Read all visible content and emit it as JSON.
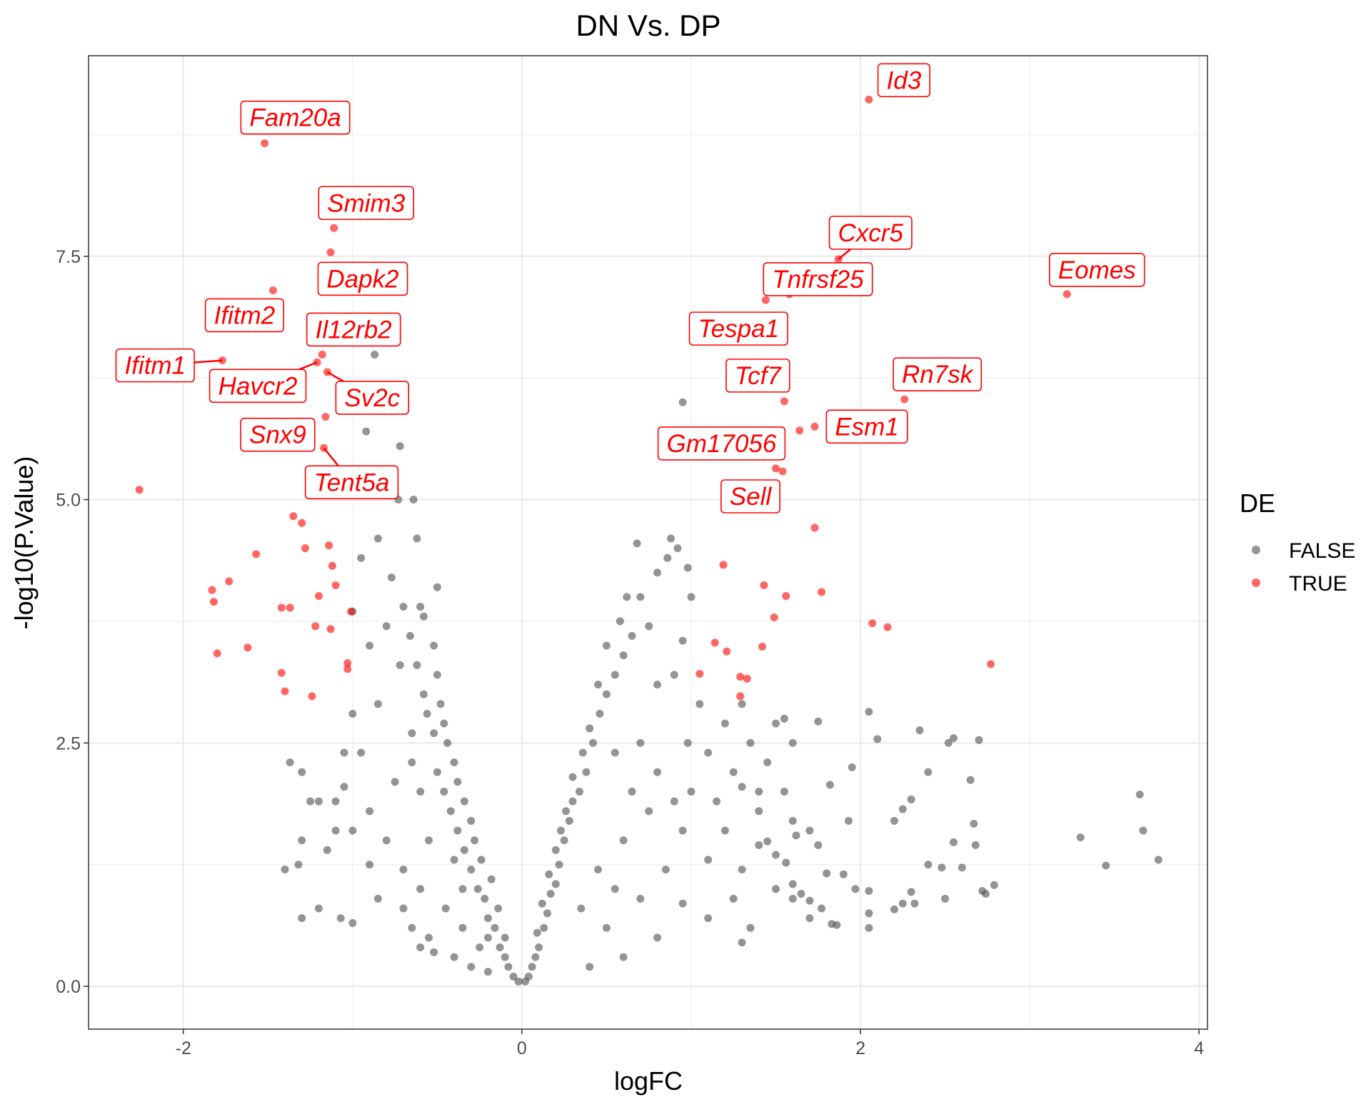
{
  "chart_data": {
    "type": "scatter",
    "title": "DN Vs. DP",
    "xlabel": "logFC",
    "ylabel": "-log10(P.Value)",
    "xlim": [
      -2.56,
      4.05
    ],
    "ylim": [
      -0.44,
      9.56
    ],
    "x_ticks": [
      "-2",
      "0",
      "2",
      "4"
    ],
    "y_ticks": [
      "0.0",
      "2.5",
      "5.0",
      "7.5"
    ],
    "grid": true,
    "legend": {
      "title": "DE",
      "position": "right",
      "entries": [
        "FALSE",
        "TRUE"
      ]
    },
    "colors": {
      "FALSE": "#4d4d4d",
      "TRUE": "#ff0000"
    },
    "labeled_points": [
      {
        "gene": "Id3",
        "x": 2.05,
        "y": 9.11
      },
      {
        "gene": "Fam20a",
        "x": -1.52,
        "y": 8.66
      },
      {
        "gene": "Smim3",
        "x": -1.11,
        "y": 7.79
      },
      {
        "gene": "Dapk2",
        "x": -1.13,
        "y": 7.54
      },
      {
        "gene": "Ifitm2",
        "x": -1.47,
        "y": 7.15
      },
      {
        "gene": "Il12rb2",
        "x": -1.18,
        "y": 6.49
      },
      {
        "gene": "Ifitm1",
        "x": -1.77,
        "y": 6.43
      },
      {
        "gene": "Havcr2",
        "x": -1.21,
        "y": 6.41
      },
      {
        "gene": "Sv2c",
        "x": -1.15,
        "y": 6.31
      },
      {
        "gene": "Snx9",
        "x": -1.16,
        "y": 5.85
      },
      {
        "gene": "Tent5a",
        "x": -1.17,
        "y": 5.53
      },
      {
        "gene": "Cxcr5",
        "x": 1.87,
        "y": 7.47
      },
      {
        "gene": "Tnfrsf25",
        "x": 1.58,
        "y": 7.11
      },
      {
        "gene": "Eomes",
        "x": 3.22,
        "y": 7.11
      },
      {
        "gene": "Tespa1",
        "x": 1.44,
        "y": 7.05
      },
      {
        "gene": "Tcf7",
        "x": 1.55,
        "y": 6.01
      },
      {
        "gene": "Rn7sk",
        "x": 2.26,
        "y": 6.03
      },
      {
        "gene": "Esm1",
        "x": 1.73,
        "y": 5.75
      },
      {
        "gene": "Gm17056",
        "x": 1.5,
        "y": 5.32
      },
      {
        "gene": "Sell",
        "x": 1.54,
        "y": 5.29
      }
    ],
    "de_true_points": [
      [
        1.64,
        5.71
      ],
      [
        -2.26,
        5.1
      ],
      [
        -1.35,
        4.83
      ],
      [
        -1.3,
        4.76
      ],
      [
        -1.57,
        4.44
      ],
      [
        -1.14,
        4.53
      ],
      [
        -1.28,
        4.5
      ],
      [
        -1.12,
        4.32
      ],
      [
        -1.73,
        4.16
      ],
      [
        -1.83,
        4.07
      ],
      [
        -1.1,
        4.12
      ],
      [
        -1.2,
        4.01
      ],
      [
        -1.42,
        3.89
      ],
      [
        -1.37,
        3.89
      ],
      [
        -1.82,
        3.95
      ],
      [
        -1.01,
        3.85
      ],
      [
        -1.22,
        3.7
      ],
      [
        -1.13,
        3.67
      ],
      [
        -1.62,
        3.48
      ],
      [
        -1.8,
        3.42
      ],
      [
        -1.03,
        3.32
      ],
      [
        -1.03,
        3.26
      ],
      [
        -1.42,
        3.22
      ],
      [
        -1.4,
        3.03
      ],
      [
        -1.24,
        2.98
      ],
      [
        1.73,
        4.71
      ],
      [
        1.19,
        4.33
      ],
      [
        1.43,
        4.12
      ],
      [
        1.56,
        4.01
      ],
      [
        1.77,
        4.05
      ],
      [
        1.49,
        3.79
      ],
      [
        2.07,
        3.73
      ],
      [
        2.16,
        3.69
      ],
      [
        1.14,
        3.53
      ],
      [
        1.21,
        3.44
      ],
      [
        1.42,
        3.49
      ],
      [
        1.05,
        3.21
      ],
      [
        1.29,
        3.18
      ],
      [
        1.33,
        3.16
      ],
      [
        1.29,
        2.98
      ],
      [
        2.77,
        3.31
      ]
    ],
    "de_false_points": [
      [
        -0.02,
        0.05
      ],
      [
        -0.05,
        0.1
      ],
      [
        -0.08,
        0.2
      ],
      [
        -0.1,
        0.3
      ],
      [
        -0.13,
        0.4
      ],
      [
        -0.1,
        0.5
      ],
      [
        -0.16,
        0.6
      ],
      [
        -0.2,
        0.7
      ],
      [
        -0.14,
        0.8
      ],
      [
        -0.22,
        0.9
      ],
      [
        -0.26,
        1.0
      ],
      [
        -0.18,
        1.1
      ],
      [
        -0.3,
        1.2
      ],
      [
        -0.24,
        1.3
      ],
      [
        -0.34,
        1.4
      ],
      [
        -0.28,
        1.5
      ],
      [
        -0.38,
        1.6
      ],
      [
        -0.3,
        1.7
      ],
      [
        -0.42,
        1.8
      ],
      [
        -0.34,
        1.9
      ],
      [
        -0.46,
        2.0
      ],
      [
        -0.38,
        2.1
      ],
      [
        -0.5,
        2.2
      ],
      [
        -0.4,
        2.3
      ],
      [
        -0.44,
        2.5
      ],
      [
        -0.52,
        2.6
      ],
      [
        -0.46,
        2.7
      ],
      [
        -0.56,
        2.8
      ],
      [
        -0.48,
        2.9
      ],
      [
        -0.58,
        3.0
      ],
      [
        -0.5,
        3.2
      ],
      [
        -0.62,
        3.3
      ],
      [
        -0.52,
        3.5
      ],
      [
        -0.66,
        3.6
      ],
      [
        -0.58,
        3.8
      ],
      [
        -0.7,
        3.9
      ],
      [
        -0.6,
        1.0
      ],
      [
        -0.7,
        1.2
      ],
      [
        -0.8,
        1.5
      ],
      [
        -0.9,
        1.8
      ],
      [
        -0.75,
        2.1
      ],
      [
        -0.95,
        2.4
      ],
      [
        -1.05,
        2.4
      ],
      [
        -0.65,
        2.6
      ],
      [
        -0.85,
        2.9
      ],
      [
        -1.0,
        2.8
      ],
      [
        -0.72,
        3.3
      ],
      [
        -0.9,
        3.5
      ],
      [
        -1.0,
        3.85
      ],
      [
        -0.8,
        3.7
      ],
      [
        -0.77,
        4.2
      ],
      [
        -0.62,
        4.6
      ],
      [
        -0.85,
        4.6
      ],
      [
        -0.95,
        4.4
      ],
      [
        -0.5,
        4.1
      ],
      [
        -0.6,
        3.9
      ],
      [
        -0.73,
        5.0
      ],
      [
        -0.64,
        5.0
      ],
      [
        -0.95,
        5.3
      ],
      [
        -0.92,
        5.7
      ],
      [
        -0.72,
        5.55
      ],
      [
        -0.87,
        6.49
      ],
      [
        -1.37,
        2.3
      ],
      [
        -1.3,
        2.2
      ],
      [
        -1.2,
        1.9
      ],
      [
        -1.25,
        1.9
      ],
      [
        -1.4,
        1.2
      ],
      [
        -1.32,
        1.25
      ],
      [
        -1.3,
        0.7
      ],
      [
        -1.2,
        0.8
      ],
      [
        -1.07,
        0.7
      ],
      [
        -1.0,
        0.65
      ],
      [
        -1.3,
        1.5
      ],
      [
        -1.15,
        1.4
      ],
      [
        -1.1,
        1.6
      ],
      [
        -1.05,
        2.05
      ],
      [
        -0.55,
        0.5
      ],
      [
        -0.4,
        0.3
      ],
      [
        -0.3,
        0.2
      ],
      [
        -0.45,
        0.8
      ],
      [
        -0.52,
        0.35
      ],
      [
        -0.35,
        0.6
      ],
      [
        -0.65,
        0.6
      ],
      [
        -0.6,
        0.4
      ],
      [
        -0.2,
        0.15
      ],
      [
        -0.25,
        0.4
      ],
      [
        -0.7,
        0.8
      ],
      [
        -0.85,
        0.9
      ],
      [
        -0.9,
        1.25
      ],
      [
        -1.0,
        1.6
      ],
      [
        -1.1,
        1.9
      ],
      [
        -0.35,
        1.0
      ],
      [
        -0.4,
        1.3
      ],
      [
        -0.2,
        0.5
      ],
      [
        -0.55,
        1.5
      ],
      [
        -0.6,
        2.0
      ],
      [
        -0.65,
        2.3
      ],
      [
        0.02,
        0.05
      ],
      [
        0.04,
        0.1
      ],
      [
        0.06,
        0.2
      ],
      [
        0.08,
        0.3
      ],
      [
        0.1,
        0.4
      ],
      [
        0.09,
        0.55
      ],
      [
        0.13,
        0.6
      ],
      [
        0.15,
        0.75
      ],
      [
        0.12,
        0.85
      ],
      [
        0.17,
        0.95
      ],
      [
        0.2,
        1.05
      ],
      [
        0.16,
        1.15
      ],
      [
        0.22,
        1.25
      ],
      [
        0.2,
        1.4
      ],
      [
        0.25,
        1.5
      ],
      [
        0.23,
        1.6
      ],
      [
        0.28,
        1.7
      ],
      [
        0.26,
        1.8
      ],
      [
        0.3,
        1.9
      ],
      [
        0.34,
        2.0
      ],
      [
        0.3,
        2.15
      ],
      [
        0.38,
        2.2
      ],
      [
        0.36,
        2.4
      ],
      [
        0.42,
        2.5
      ],
      [
        0.4,
        2.65
      ],
      [
        0.46,
        2.8
      ],
      [
        0.5,
        3.0
      ],
      [
        0.45,
        3.1
      ],
      [
        0.55,
        3.2
      ],
      [
        0.6,
        3.4
      ],
      [
        0.5,
        3.5
      ],
      [
        0.65,
        3.6
      ],
      [
        0.58,
        3.75
      ],
      [
        0.7,
        4.0
      ],
      [
        0.62,
        4.0
      ],
      [
        0.68,
        4.55
      ],
      [
        0.88,
        4.6
      ],
      [
        0.92,
        4.5
      ],
      [
        0.86,
        4.4
      ],
      [
        0.98,
        4.3
      ],
      [
        0.8,
        4.25
      ],
      [
        1.0,
        4.0
      ],
      [
        0.95,
        3.55
      ],
      [
        0.75,
        3.7
      ],
      [
        0.9,
        3.2
      ],
      [
        0.8,
        3.1
      ],
      [
        1.05,
        2.9
      ],
      [
        0.98,
        2.5
      ],
      [
        1.1,
        2.4
      ],
      [
        1.2,
        2.7
      ],
      [
        1.3,
        2.9
      ],
      [
        1.35,
        2.5
      ],
      [
        1.5,
        2.7
      ],
      [
        1.6,
        2.5
      ],
      [
        1.45,
        2.3
      ],
      [
        1.25,
        2.2
      ],
      [
        1.3,
        2.05
      ],
      [
        1.55,
        2.0
      ],
      [
        1.6,
        1.7
      ],
      [
        1.4,
        1.8
      ],
      [
        1.2,
        1.6
      ],
      [
        1.1,
        1.3
      ],
      [
        1.3,
        1.2
      ],
      [
        1.5,
        1.0
      ],
      [
        1.6,
        0.9
      ],
      [
        1.7,
        0.7
      ],
      [
        1.35,
        0.6
      ],
      [
        1.3,
        0.45
      ],
      [
        1.1,
        0.7
      ],
      [
        0.95,
        0.85
      ],
      [
        0.8,
        0.5
      ],
      [
        0.6,
        0.3
      ],
      [
        0.4,
        0.2
      ],
      [
        0.5,
        0.6
      ],
      [
        0.7,
        0.9
      ],
      [
        0.85,
        1.2
      ],
      [
        0.95,
        1.6
      ],
      [
        0.75,
        1.8
      ],
      [
        0.6,
        1.5
      ],
      [
        0.45,
        1.2
      ],
      [
        0.35,
        0.8
      ],
      [
        0.55,
        1.0
      ],
      [
        0.65,
        2.0
      ],
      [
        0.8,
        2.2
      ],
      [
        0.7,
        2.5
      ],
      [
        0.55,
        2.4
      ],
      [
        1.0,
        2.0
      ],
      [
        1.15,
        1.9
      ],
      [
        0.9,
        1.9
      ],
      [
        1.4,
        1.45
      ],
      [
        1.25,
        0.9
      ],
      [
        1.95,
        2.25
      ],
      [
        2.05,
        2.82
      ],
      [
        2.1,
        2.54
      ],
      [
        1.75,
        2.72
      ],
      [
        1.55,
        2.75
      ],
      [
        1.82,
        2.07
      ],
      [
        1.93,
        1.7
      ],
      [
        2.2,
        1.7
      ],
      [
        2.3,
        1.92
      ],
      [
        2.25,
        1.82
      ],
      [
        2.35,
        2.63
      ],
      [
        2.4,
        2.2
      ],
      [
        2.55,
        2.55
      ],
      [
        2.52,
        2.5
      ],
      [
        2.7,
        2.53
      ],
      [
        2.65,
        2.12
      ],
      [
        2.67,
        1.67
      ],
      [
        2.68,
        1.45
      ],
      [
        2.55,
        1.48
      ],
      [
        2.6,
        1.22
      ],
      [
        2.48,
        1.22
      ],
      [
        2.4,
        1.25
      ],
      [
        2.3,
        0.97
      ],
      [
        2.2,
        0.79
      ],
      [
        2.25,
        0.85
      ],
      [
        2.32,
        0.85
      ],
      [
        2.5,
        0.9
      ],
      [
        2.72,
        0.98
      ],
      [
        2.79,
        1.04
      ],
      [
        2.74,
        0.95
      ],
      [
        2.05,
        0.98
      ],
      [
        2.05,
        0.6
      ],
      [
        1.97,
        1.0
      ],
      [
        2.05,
        0.75
      ],
      [
        1.9,
        1.15
      ],
      [
        1.8,
        1.16
      ],
      [
        1.86,
        0.63
      ],
      [
        1.83,
        0.64
      ],
      [
        1.77,
        0.8
      ],
      [
        1.65,
        0.95
      ],
      [
        1.6,
        1.05
      ],
      [
        1.7,
        0.88
      ],
      [
        1.56,
        1.27
      ],
      [
        1.5,
        1.35
      ],
      [
        1.45,
        1.49
      ],
      [
        3.65,
        1.97
      ],
      [
        3.67,
        1.6
      ],
      [
        3.76,
        1.3
      ],
      [
        3.3,
        1.53
      ],
      [
        3.45,
        1.24
      ],
      [
        1.75,
        1.45
      ],
      [
        1.7,
        1.6
      ],
      [
        1.62,
        1.55
      ],
      [
        0.95,
        6.0
      ],
      [
        1.4,
        2.0
      ]
    ]
  }
}
